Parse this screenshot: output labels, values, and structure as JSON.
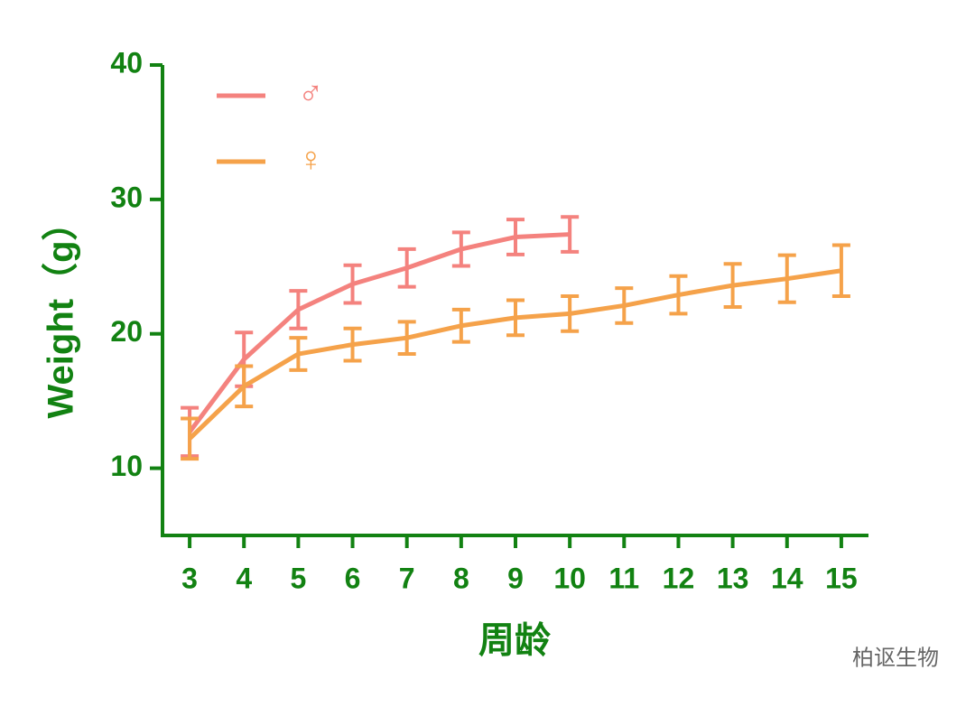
{
  "chart_data": {
    "type": "line",
    "y_label": "Weight（g）",
    "x_label": "周龄",
    "watermark": "柏讴生物",
    "x": [
      3,
      4,
      5,
      6,
      7,
      8,
      9,
      10,
      11,
      12,
      13,
      14,
      15
    ],
    "series": [
      {
        "name": "♂",
        "color": "#f4827e",
        "values": [
          12.7,
          18.1,
          21.8,
          23.7,
          24.9,
          26.3,
          27.2,
          27.4,
          null,
          null,
          null,
          null,
          null
        ],
        "errors": [
          1.8,
          2.0,
          1.4,
          1.4,
          1.4,
          1.25,
          1.3,
          1.3,
          null,
          null,
          null,
          null,
          null
        ]
      },
      {
        "name": "♀",
        "color": "#f5a24a",
        "values": [
          12.2,
          16.1,
          18.5,
          19.2,
          19.7,
          20.6,
          21.2,
          21.5,
          22.1,
          22.9,
          23.6,
          24.1,
          24.7
        ],
        "errors": [
          1.5,
          1.5,
          1.2,
          1.2,
          1.2,
          1.2,
          1.3,
          1.3,
          1.3,
          1.4,
          1.6,
          1.75,
          1.9
        ]
      }
    ],
    "xlim": [
      2.5,
      15.5
    ],
    "xticks": [
      3,
      4,
      5,
      6,
      7,
      8,
      9,
      10,
      11,
      12,
      13,
      14,
      15
    ],
    "ylim": [
      5,
      40
    ],
    "yticks": [
      10,
      20,
      30,
      40
    ],
    "axis_color": "#128212",
    "legend": "upper left"
  }
}
